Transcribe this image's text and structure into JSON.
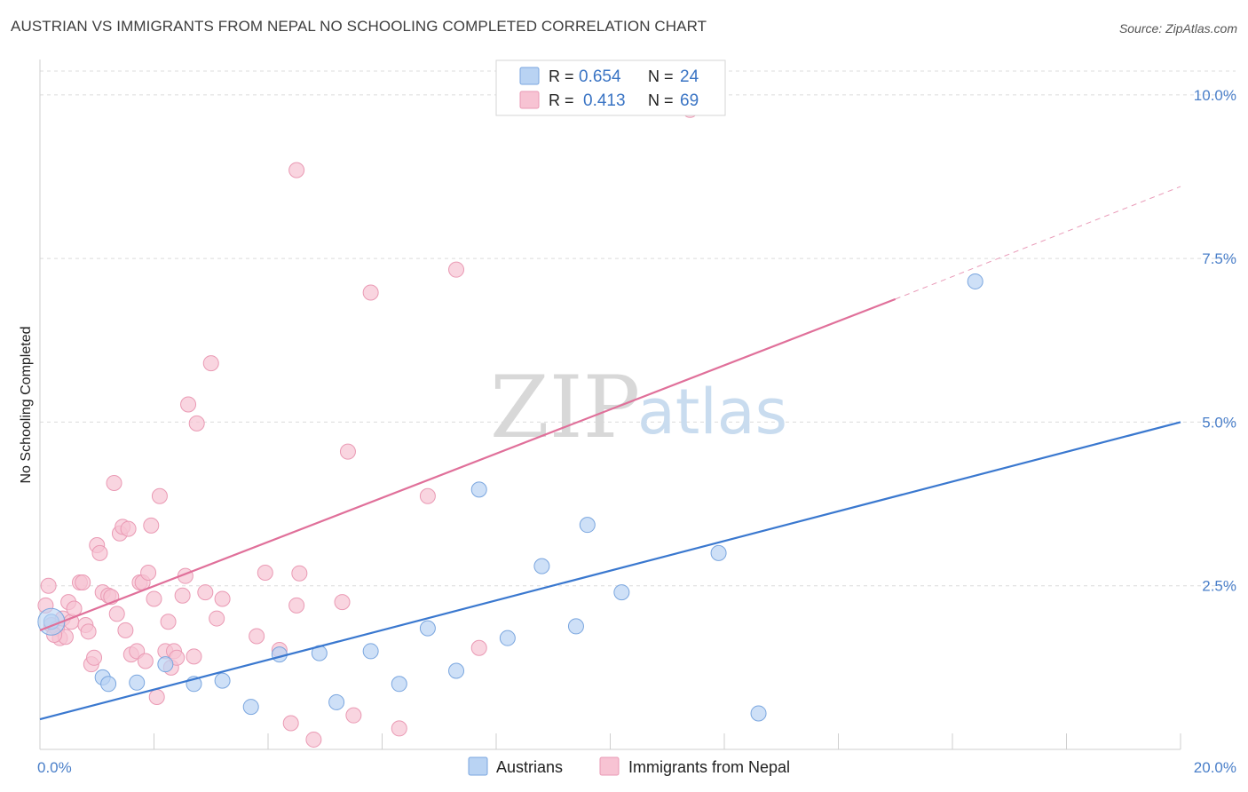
{
  "header": {
    "title": "AUSTRIAN VS IMMIGRANTS FROM NEPAL NO SCHOOLING COMPLETED CORRELATION CHART",
    "source": "Source: ZipAtlas.com"
  },
  "watermark": {
    "zip": "ZIP",
    "atlas": "atlas"
  },
  "colors": {
    "blue_fill": "#b9d3f3",
    "blue_stroke": "#7aa6df",
    "blue_line": "#3a78cf",
    "pink_fill": "#f7c3d3",
    "pink_stroke": "#ea9ab4",
    "pink_line": "#e0709a",
    "grid": "#dcdcdc",
    "axis_label": "#4a7fc9"
  },
  "legend": {
    "rows": [
      {
        "r_label": "R =",
        "r_value": "0.654",
        "n_label": "N =",
        "n_value": "24"
      },
      {
        "r_label": "R =",
        "r_value": "0.413",
        "n_label": "N =",
        "n_value": "69"
      }
    ]
  },
  "chart_data": {
    "type": "scatter",
    "title": "AUSTRIAN VS IMMIGRANTS FROM NEPAL NO SCHOOLING COMPLETED CORRELATION CHART",
    "xlabel": "",
    "ylabel": "No Schooling Completed",
    "xlim": [
      0,
      20
    ],
    "ylim": [
      0,
      10.5
    ],
    "x_tick_labels": [
      {
        "value": 0,
        "label": "0.0%"
      },
      {
        "value": 20,
        "label": "20.0%"
      }
    ],
    "y_tick_labels": [
      {
        "value": 2.5,
        "label": "2.5%"
      },
      {
        "value": 5.0,
        "label": "5.0%"
      },
      {
        "value": 7.5,
        "label": "7.5%"
      },
      {
        "value": 10.0,
        "label": "10.0%"
      }
    ],
    "x_minor_ticks": [
      0,
      2,
      4,
      6,
      8,
      10,
      12,
      14,
      16,
      18,
      20
    ],
    "grid": true,
    "series": [
      {
        "name": "Austrians",
        "color": "blue",
        "points": [
          [
            0.2,
            1.95
          ],
          [
            1.1,
            1.1
          ],
          [
            1.2,
            1.0
          ],
          [
            1.7,
            1.02
          ],
          [
            2.2,
            1.3
          ],
          [
            2.7,
            1.0
          ],
          [
            3.2,
            1.05
          ],
          [
            3.7,
            0.65
          ],
          [
            4.2,
            1.45
          ],
          [
            4.9,
            1.47
          ],
          [
            5.2,
            0.72
          ],
          [
            5.8,
            1.5
          ],
          [
            6.3,
            1.0
          ],
          [
            6.8,
            1.85
          ],
          [
            7.3,
            1.2
          ],
          [
            7.7,
            3.97
          ],
          [
            8.2,
            1.7
          ],
          [
            8.8,
            2.8
          ],
          [
            9.4,
            1.88
          ],
          [
            9.6,
            3.43
          ],
          [
            10.2,
            2.4
          ],
          [
            11.9,
            3.0
          ],
          [
            12.6,
            0.55
          ],
          [
            16.4,
            7.15
          ]
        ],
        "trend": {
          "x1": 0,
          "y1": 0.46,
          "x2": 20,
          "y2": 5.0
        }
      },
      {
        "name": "Immigrants from Nepal",
        "color": "pink",
        "points": [
          [
            0.1,
            2.2
          ],
          [
            0.15,
            2.5
          ],
          [
            0.2,
            1.9
          ],
          [
            0.3,
            1.85
          ],
          [
            0.35,
            1.7
          ],
          [
            0.4,
            2.0
          ],
          [
            0.45,
            1.72
          ],
          [
            0.5,
            2.25
          ],
          [
            0.55,
            1.95
          ],
          [
            0.6,
            2.15
          ],
          [
            0.7,
            2.55
          ],
          [
            0.75,
            2.55
          ],
          [
            0.8,
            1.9
          ],
          [
            0.85,
            1.8
          ],
          [
            0.9,
            1.3
          ],
          [
            0.95,
            1.4
          ],
          [
            1.0,
            3.12
          ],
          [
            1.05,
            3.0
          ],
          [
            1.1,
            2.4
          ],
          [
            1.2,
            2.35
          ],
          [
            1.25,
            2.33
          ],
          [
            1.3,
            4.07
          ],
          [
            1.35,
            2.07
          ],
          [
            1.4,
            3.3
          ],
          [
            1.45,
            3.4
          ],
          [
            1.5,
            1.82
          ],
          [
            1.55,
            3.37
          ],
          [
            1.6,
            1.45
          ],
          [
            1.7,
            1.5
          ],
          [
            1.75,
            2.55
          ],
          [
            1.8,
            2.55
          ],
          [
            1.85,
            1.35
          ],
          [
            1.9,
            2.7
          ],
          [
            1.95,
            3.42
          ],
          [
            2.0,
            2.3
          ],
          [
            2.05,
            0.8
          ],
          [
            2.1,
            3.87
          ],
          [
            2.2,
            1.5
          ],
          [
            2.25,
            1.95
          ],
          [
            2.3,
            1.25
          ],
          [
            2.35,
            1.5
          ],
          [
            2.4,
            1.4
          ],
          [
            2.5,
            2.35
          ],
          [
            2.55,
            2.65
          ],
          [
            2.6,
            5.27
          ],
          [
            2.7,
            1.42
          ],
          [
            2.75,
            4.98
          ],
          [
            2.9,
            2.4
          ],
          [
            3.0,
            5.9
          ],
          [
            3.1,
            2.0
          ],
          [
            3.2,
            2.3
          ],
          [
            3.8,
            1.73
          ],
          [
            3.95,
            2.7
          ],
          [
            4.2,
            1.52
          ],
          [
            4.4,
            0.4
          ],
          [
            4.5,
            2.2
          ],
          [
            4.55,
            2.69
          ],
          [
            4.5,
            8.85
          ],
          [
            4.8,
            0.15
          ],
          [
            5.3,
            2.25
          ],
          [
            5.4,
            4.55
          ],
          [
            5.5,
            0.52
          ],
          [
            5.8,
            6.98
          ],
          [
            6.3,
            0.32
          ],
          [
            6.8,
            3.87
          ],
          [
            7.3,
            7.33
          ],
          [
            7.7,
            1.55
          ],
          [
            11.4,
            9.77
          ],
          [
            0.25,
            1.75
          ]
        ],
        "trend": {
          "x1": 0,
          "y1": 1.82,
          "x2": 15,
          "y2": 6.88,
          "dash_to_x": 20,
          "dash_to_y": 8.6
        }
      }
    ]
  },
  "bottom_legend": {
    "items": [
      {
        "label": "Austrians"
      },
      {
        "label": "Immigrants from Nepal"
      }
    ]
  }
}
